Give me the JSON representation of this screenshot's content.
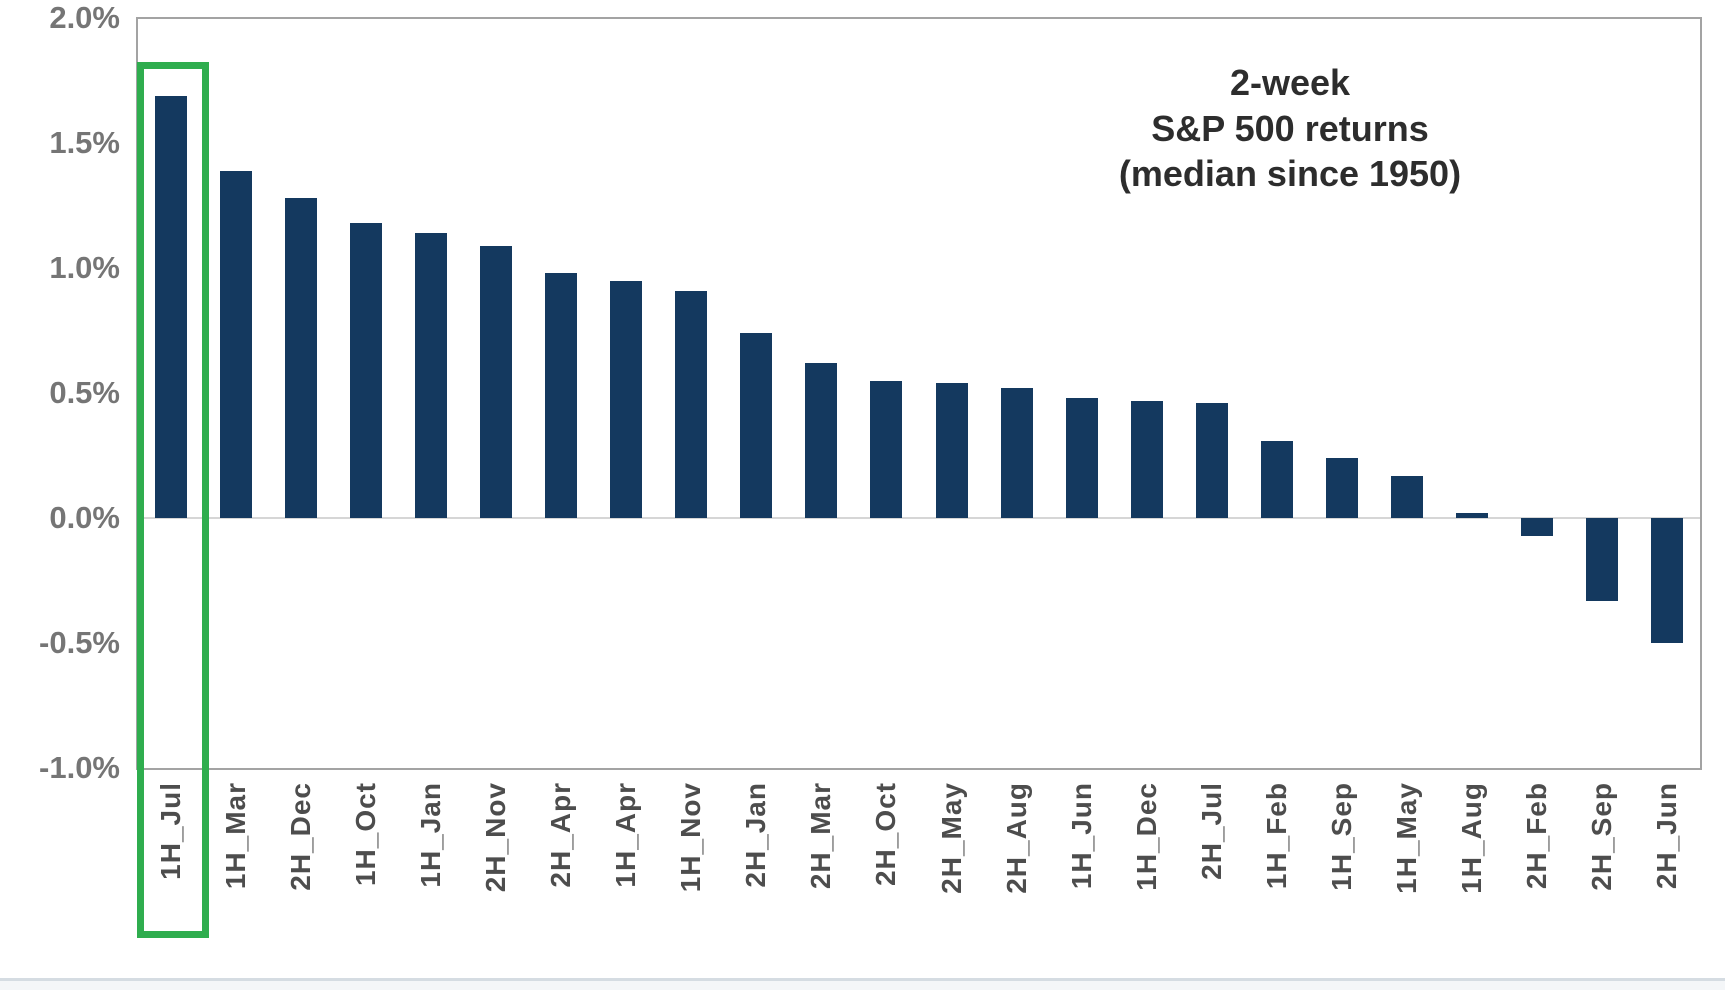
{
  "title": "2-week\nS&P 500 returns\n(median since 1950)",
  "colors": {
    "bar": "#14395f",
    "highlight": "#2fad4e",
    "plot_border": "#a3a3a3",
    "baseline": "#d6d6d6",
    "y_tick_text": "#757575",
    "x_tick_text": "#4d4d4d",
    "title_text": "#2d2d2d",
    "divider": "#d5dce2"
  },
  "chart_data": {
    "type": "bar",
    "title": "2-week S&P 500 returns (median since 1950)",
    "unit": "%",
    "categories": [
      "1H_Jul",
      "1H_Mar",
      "2H_Dec",
      "1H_Oct",
      "1H_Jan",
      "2H_Nov",
      "2H_Apr",
      "1H_Apr",
      "1H_Nov",
      "2H_Jan",
      "2H_Mar",
      "2H_Oct",
      "2H_May",
      "2H_Aug",
      "1H_Jun",
      "1H_Dec",
      "2H_Jul",
      "1H_Feb",
      "1H_Sep",
      "1H_May",
      "1H_Aug",
      "2H_Feb",
      "2H_Sep",
      "2H_Jun"
    ],
    "values": [
      1.69,
      1.39,
      1.28,
      1.18,
      1.14,
      1.09,
      0.98,
      0.95,
      0.91,
      0.74,
      0.62,
      0.55,
      0.54,
      0.52,
      0.48,
      0.47,
      0.46,
      0.31,
      0.24,
      0.17,
      0.02,
      -0.07,
      -0.33,
      -0.5
    ],
    "y_ticks": [
      "2.0%",
      "1.5%",
      "1.0%",
      "0.5%",
      "0.0%",
      "-0.5%",
      "-1.0%"
    ],
    "y_tick_values": [
      2.0,
      1.5,
      1.0,
      0.5,
      0.0,
      -0.5,
      -1.0
    ],
    "ylim": [
      -1.0,
      2.0
    ],
    "grid": "baseline-only",
    "legend_position": "none",
    "highlighted_category": "1H_Jul",
    "xlabel": "",
    "ylabel": ""
  }
}
